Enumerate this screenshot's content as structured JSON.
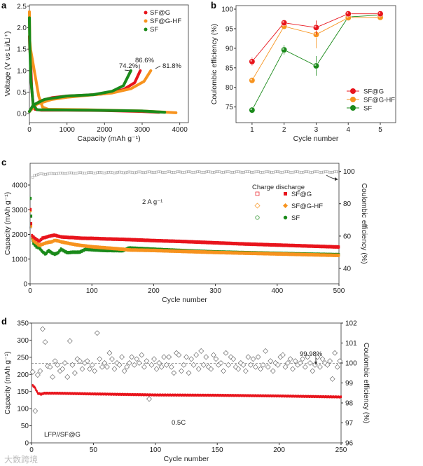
{
  "colors": {
    "sfg": "#e8141c",
    "sfghf": "#f7931e",
    "sf": "#1a8a1a",
    "ce": "#777777"
  },
  "watermark": "大数跨境",
  "chart_data": [
    {
      "panel": "a",
      "type": "line",
      "xlabel": "Capacity (mAh g⁻¹)",
      "ylabel": "Voltage (V vs Li/Li⁺)",
      "xlim": [
        0,
        4230
      ],
      "ylim": [
        -0.21,
        2.53
      ],
      "xticks": [
        "0",
        "1000",
        "2000",
        "3000",
        "4000"
      ],
      "yticks": [
        "0.0",
        "0.5",
        "1.0",
        "1.5",
        "2.0",
        "2.5"
      ],
      "legend": [
        "SF@G",
        "SF@G-HF",
        "SF"
      ],
      "legend_position": "top-right",
      "annotations": [
        {
          "text": "74.2%",
          "series": "SF"
        },
        {
          "text": "86.6%",
          "series": "SF@G"
        },
        {
          "text": "81.8%",
          "series": "SF@G-HF"
        }
      ],
      "series": [
        {
          "name": "SF@G",
          "color_key": "sfg",
          "discharge": [
            [
              0,
              1.8
            ],
            [
              10,
              1.5
            ],
            [
              30,
              1.3
            ],
            [
              60,
              0.6
            ],
            [
              100,
              0.2
            ],
            [
              150,
              0.1
            ],
            [
              300,
              0.08
            ],
            [
              1000,
              0.08
            ],
            [
              2000,
              0.07
            ],
            [
              3000,
              0.05
            ],
            [
              3450,
              0.03
            ]
          ],
          "charge": [
            [
              0,
              0.05
            ],
            [
              100,
              0.18
            ],
            [
              300,
              0.3
            ],
            [
              600,
              0.37
            ],
            [
              1000,
              0.41
            ],
            [
              1500,
              0.43
            ],
            [
              2000,
              0.46
            ],
            [
              2500,
              0.56
            ],
            [
              2800,
              0.72
            ],
            [
              2950,
              1.0
            ]
          ]
        },
        {
          "name": "SF@G-HF",
          "color_key": "sfghf",
          "discharge": [
            [
              0,
              2.37
            ],
            [
              10,
              1.7
            ],
            [
              30,
              1.5
            ],
            [
              80,
              1.25
            ],
            [
              150,
              0.9
            ],
            [
              250,
              0.4
            ],
            [
              350,
              0.15
            ],
            [
              500,
              0.1
            ],
            [
              1500,
              0.09
            ],
            [
              3000,
              0.06
            ],
            [
              3900,
              0.02
            ]
          ],
          "charge": [
            [
              0,
              0.05
            ],
            [
              200,
              0.22
            ],
            [
              600,
              0.33
            ],
            [
              1000,
              0.38
            ],
            [
              1600,
              0.43
            ],
            [
              2200,
              0.48
            ],
            [
              2700,
              0.58
            ],
            [
              3050,
              0.75
            ],
            [
              3230,
              1.0
            ]
          ]
        },
        {
          "name": "SF",
          "color_key": "sf",
          "discharge": [
            [
              0,
              2.23
            ],
            [
              10,
              1.6
            ],
            [
              40,
              0.8
            ],
            [
              100,
              0.2
            ],
            [
              200,
              0.09
            ],
            [
              1500,
              0.08
            ],
            [
              3000,
              0.06
            ],
            [
              3600,
              0.03
            ]
          ],
          "charge": [
            [
              0,
              0.05
            ],
            [
              100,
              0.2
            ],
            [
              400,
              0.33
            ],
            [
              1000,
              0.41
            ],
            [
              1700,
              0.44
            ],
            [
              2200,
              0.52
            ],
            [
              2500,
              0.65
            ],
            [
              2700,
              1.0
            ]
          ]
        }
      ]
    },
    {
      "panel": "b",
      "type": "line",
      "xlabel": "Cycle number",
      "ylabel": "Coulombic efficiency (%)",
      "xlim": [
        0.5,
        5.48
      ],
      "ylim": [
        71,
        100.9
      ],
      "xticks": [
        "1",
        "2",
        "3",
        "4",
        "5"
      ],
      "yticks": [
        "75",
        "80",
        "85",
        "90",
        "95",
        "100"
      ],
      "legend_position": "bottom-right",
      "x": [
        1,
        2,
        3,
        4,
        5
      ],
      "series": [
        {
          "name": "SF@G",
          "color_key": "sfg",
          "values": [
            86.6,
            96.5,
            95.3,
            98.8,
            98.8
          ],
          "errors": [
            1.0,
            0.5,
            1.8,
            0.3,
            0.3
          ]
        },
        {
          "name": "SF@G-HF",
          "color_key": "sfghf",
          "values": [
            81.8,
            95.6,
            93.5,
            97.8,
            97.9
          ],
          "errors": [
            0.3,
            0.3,
            3.5,
            0.3,
            0.3
          ]
        },
        {
          "name": "SF",
          "color_key": "sf",
          "values": [
            74.2,
            89.6,
            85.5,
            98.0,
            98.5
          ],
          "errors": [
            0.3,
            1.2,
            2.5,
            0.3,
            0.3
          ]
        }
      ]
    },
    {
      "panel": "c",
      "type": "scatter",
      "xlabel": "Cycle number",
      "ylabel": "Capacity (mAh g⁻¹)",
      "y2label": "Coulombic efficiency (%)",
      "xlim": [
        0,
        500
      ],
      "ylim": [
        0,
        4880
      ],
      "y2lim": [
        30.5,
        105
      ],
      "xticks": [
        "0",
        "100",
        "200",
        "300",
        "400",
        "500"
      ],
      "yticks": [
        "0",
        "1000",
        "2000",
        "3000",
        "4000"
      ],
      "y2ticks": [
        "40",
        "60",
        "80",
        "100"
      ],
      "legend_title": "Charge discharge",
      "legend_position": "top-right",
      "annotation": "2 A g⁻¹",
      "x": [
        1,
        2,
        3,
        5,
        10,
        15,
        20,
        25,
        30,
        35,
        40,
        45,
        50,
        60,
        70,
        80,
        90,
        100,
        120,
        150,
        160,
        200,
        250,
        300,
        350,
        400,
        450,
        500
      ],
      "series": [
        {
          "name": "SF@G",
          "color_key": "sfg",
          "marker": "square",
          "values": [
            3000,
            2450,
            1950,
            1900,
            1800,
            1720,
            1850,
            1880,
            1920,
            1950,
            1970,
            1930,
            1900,
            1880,
            1870,
            1850,
            1840,
            1840,
            1820,
            1800,
            1790,
            1750,
            1710,
            1660,
            1610,
            1570,
            1530,
            1490
          ]
        },
        {
          "name": "SF@G-HF",
          "color_key": "sfghf",
          "marker": "diamond",
          "values": [
            2950,
            2350,
            1900,
            1750,
            1650,
            1550,
            1600,
            1650,
            1680,
            1700,
            1760,
            1740,
            1700,
            1650,
            1600,
            1560,
            1530,
            1500,
            1460,
            1400,
            1370,
            1350,
            1310,
            1270,
            1240,
            1210,
            1180,
            1150
          ]
        },
        {
          "name": "SF",
          "color_key": "sf",
          "marker": "circle",
          "values": [
            3450,
            2750,
            1850,
            1650,
            1500,
            1450,
            1300,
            1200,
            1350,
            1250,
            1200,
            1250,
            1400,
            1260,
            1280,
            1280,
            1400,
            1380,
            1350,
            1340,
            1450,
            1400,
            1340,
            1290,
            1260,
            1230,
            1200,
            1180
          ]
        }
      ],
      "ce": {
        "x": [
          1,
          2,
          3,
          5,
          10,
          20,
          50,
          100,
          200,
          300,
          400,
          500
        ],
        "values": [
          65,
          88,
          95,
          97.5,
          98,
          98.3,
          98.8,
          99.2,
          99.5,
          99.6,
          99.6,
          99.6
        ]
      }
    },
    {
      "panel": "d",
      "type": "scatter",
      "xlabel": "Cycle number",
      "ylabel": "Capacity (mAh g⁻¹)",
      "y2label": "Coulombic efficiency (%)",
      "xlim": [
        0,
        250
      ],
      "ylim": [
        0,
        350
      ],
      "y2lim": [
        96,
        102
      ],
      "xticks": [
        "0",
        "50",
        "100",
        "150",
        "200",
        "250"
      ],
      "yticks": [
        "0",
        "50",
        "100",
        "150",
        "200",
        "250",
        "300",
        "350"
      ],
      "y2ticks": [
        "96",
        "97",
        "98",
        "99",
        "100",
        "101",
        "102"
      ],
      "annotations": [
        "99.98%",
        "0.5C",
        "LFP//SF@G"
      ],
      "reference_ce": 99.98,
      "capacity": {
        "x": [
          1,
          3,
          5,
          8,
          10,
          20,
          50,
          100,
          150,
          200,
          250
        ],
        "values": [
          168,
          160,
          145,
          142,
          145,
          145,
          143,
          140,
          139,
          137,
          134
        ]
      },
      "ce": {
        "x_start": 1,
        "x_step": 2,
        "values": [
          99.55,
          97.6,
          99.4,
          99.6,
          101.7,
          101.05,
          99.85,
          99.8,
          99.3,
          100.1,
          99.9,
          99.6,
          99.7,
          100.0,
          99.3,
          101.1,
          99.9,
          99.5,
          100.2,
          100.1,
          99.7,
          100.0,
          100.1,
          99.7,
          99.9,
          99.6,
          101.5,
          100.2,
          99.8,
          100.0,
          99.8,
          100.5,
          100.2,
          99.7,
          100.0,
          99.9,
          100.3,
          99.6,
          99.8,
          100.0,
          100.3,
          99.9,
          100.2,
          100.0,
          100.4,
          99.8,
          100.1,
          98.2,
          99.9,
          100.2,
          99.7,
          100.0,
          99.8,
          100.3,
          99.9,
          100.3,
          99.8,
          99.5,
          100.5,
          100.4,
          99.6,
          99.9,
          100.3,
          99.5,
          100.2,
          99.9,
          100.4,
          99.7,
          100.6,
          99.9,
          100.3,
          99.8,
          99.7,
          100.4,
          100.2,
          99.9,
          100.0,
          99.6,
          100.5,
          99.9,
          100.3,
          100.2,
          99.8,
          99.7,
          100.0,
          99.9,
          99.6,
          100.3,
          99.9,
          100.2,
          99.8,
          100.3,
          99.7,
          99.9,
          100.6,
          99.8,
          100.1,
          99.6,
          100.0,
          99.9,
          100.3,
          100.4,
          99.8,
          100.0,
          100.2,
          99.7,
          100.1,
          99.9,
          100.0,
          100.2,
          99.8,
          100.3,
          100.0,
          99.6,
          99.9,
          100.3,
          99.8,
          100.2,
          100.0,
          99.9,
          100.1,
          99.2,
          100.5,
          99.8,
          100.1
        ]
      }
    }
  ]
}
